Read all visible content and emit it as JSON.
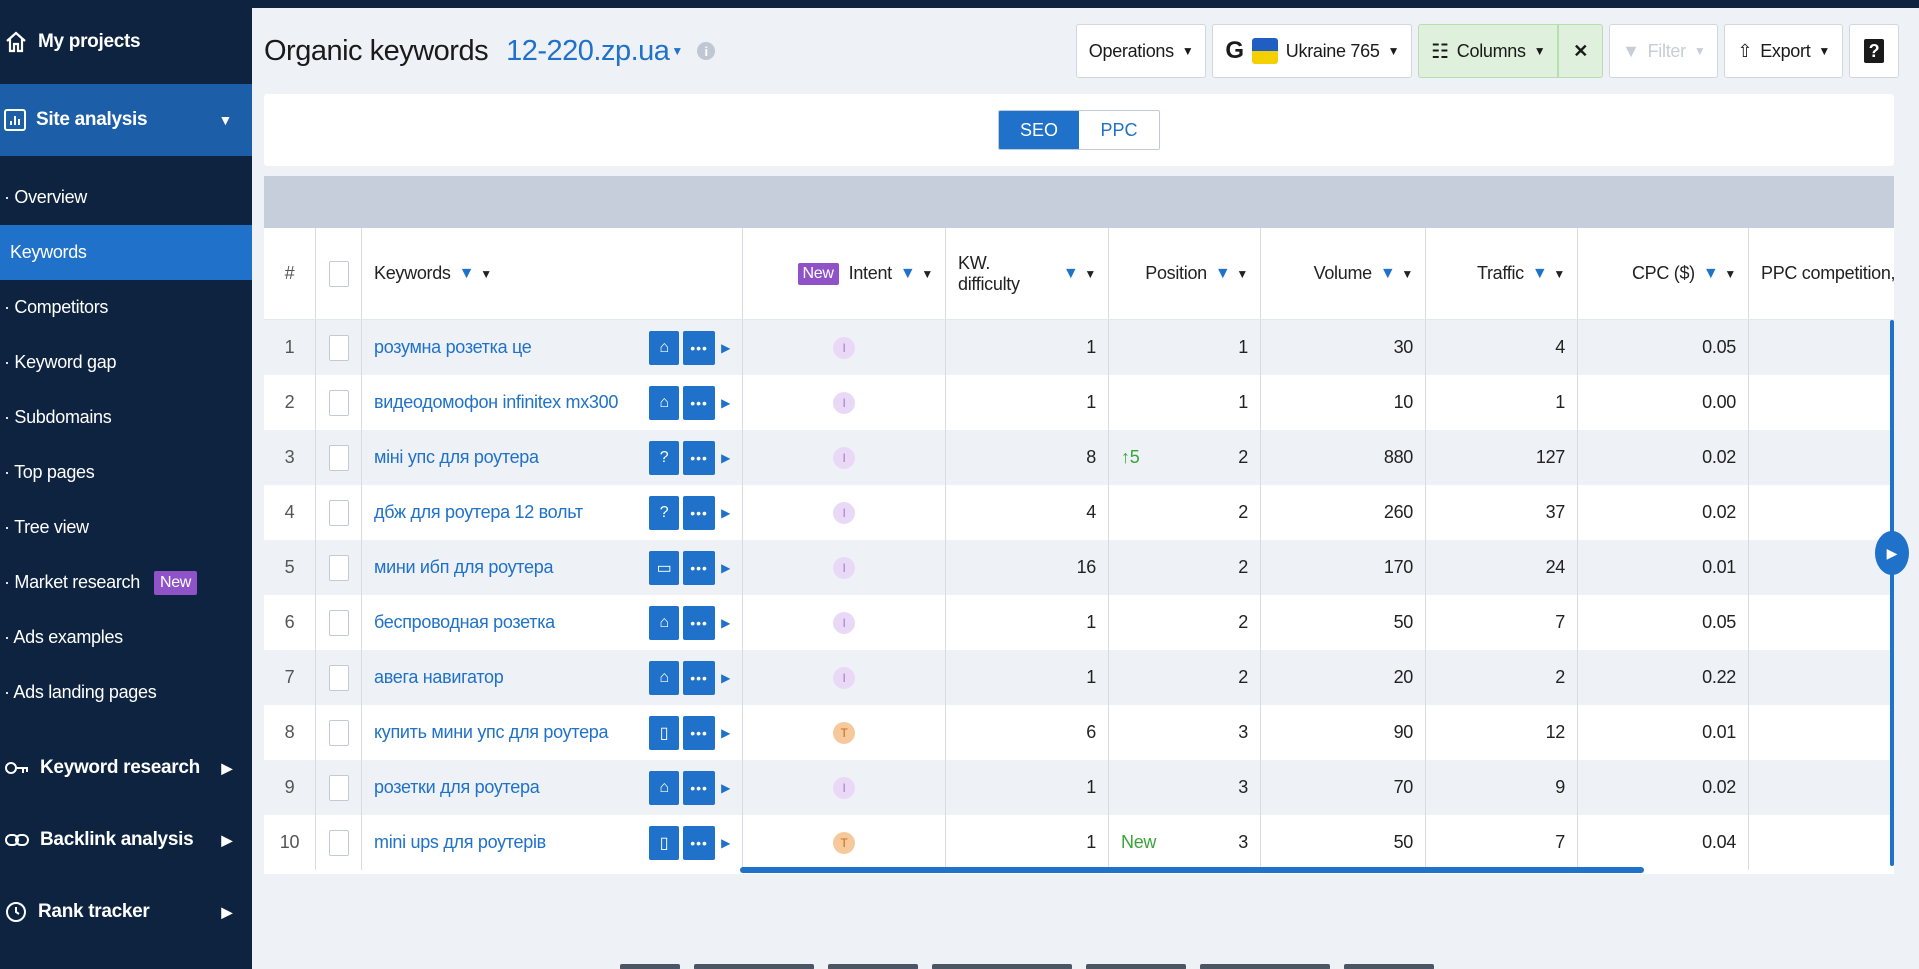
{
  "sidebar": {
    "home_label": "My projects",
    "site_analysis_label": "Site analysis",
    "sub_items": [
      {
        "label": "· Overview"
      },
      {
        "label": "Keywords"
      },
      {
        "label": "· Competitors"
      },
      {
        "label": "· Keyword gap"
      },
      {
        "label": "· Subdomains"
      },
      {
        "label": "· Top pages"
      },
      {
        "label": "· Tree view"
      },
      {
        "label": "· Market research",
        "badge": "New"
      },
      {
        "label": "· Ads examples"
      },
      {
        "label": "· Ads landing pages"
      }
    ],
    "sections": [
      {
        "label": "Keyword research"
      },
      {
        "label": "Backlink analysis"
      },
      {
        "label": "Rank tracker"
      }
    ]
  },
  "header": {
    "title": "Organic keywords",
    "domain": "12-220.zp.ua"
  },
  "toolbar": {
    "operations": "Operations",
    "country": "Ukraine 765",
    "columns": "Columns",
    "filter": "Filter",
    "export": "Export",
    "help": "?"
  },
  "toggle": {
    "seo": "SEO",
    "ppc": "PPC"
  },
  "table": {
    "headers": {
      "num": "#",
      "keywords": "Keywords",
      "new_tag": "New",
      "intent": "Intent",
      "kd": "KW. difficulty",
      "position": "Position",
      "volume": "Volume",
      "traffic": "Traffic",
      "cpc": "CPC ($)",
      "ppc": "PPC competition, %"
    },
    "rows": [
      {
        "num": "1",
        "keyword": "розумна розетка це",
        "icon": "⌂",
        "intent": "I",
        "kd": "1",
        "pos_change": "",
        "position": "1",
        "volume": "30",
        "traffic": "4",
        "cpc": "0.05"
      },
      {
        "num": "2",
        "keyword": "видеодомофон infinitex mx300",
        "icon": "⌂",
        "intent": "I",
        "kd": "1",
        "pos_change": "",
        "position": "1",
        "volume": "10",
        "traffic": "1",
        "cpc": "0.00"
      },
      {
        "num": "3",
        "keyword": "міні упс для роутера",
        "icon": "?",
        "intent": "I",
        "kd": "8",
        "pos_change": "↑5",
        "position": "2",
        "volume": "880",
        "traffic": "127",
        "cpc": "0.02"
      },
      {
        "num": "4",
        "keyword": "дбж для роутера 12 вольт",
        "icon": "?",
        "intent": "I",
        "kd": "4",
        "pos_change": "",
        "position": "2",
        "volume": "260",
        "traffic": "37",
        "cpc": "0.02"
      },
      {
        "num": "5",
        "keyword": "мини ибп для роутера",
        "icon": "▭",
        "intent": "I",
        "kd": "16",
        "pos_change": "",
        "position": "2",
        "volume": "170",
        "traffic": "24",
        "cpc": "0.01"
      },
      {
        "num": "6",
        "keyword": "беспроводная розетка",
        "icon": "⌂",
        "intent": "I",
        "kd": "1",
        "pos_change": "",
        "position": "2",
        "volume": "50",
        "traffic": "7",
        "cpc": "0.05"
      },
      {
        "num": "7",
        "keyword": "авега навигатор",
        "icon": "⌂",
        "intent": "I",
        "kd": "1",
        "pos_change": "",
        "position": "2",
        "volume": "20",
        "traffic": "2",
        "cpc": "0.22"
      },
      {
        "num": "8",
        "keyword": "купить мини упс для роутера",
        "icon": "▯",
        "intent": "T",
        "kd": "6",
        "pos_change": "",
        "position": "3",
        "volume": "90",
        "traffic": "12",
        "cpc": "0.01"
      },
      {
        "num": "9",
        "keyword": "розетки для роутера",
        "icon": "⌂",
        "intent": "I",
        "kd": "1",
        "pos_change": "",
        "position": "3",
        "volume": "70",
        "traffic": "9",
        "cpc": "0.02"
      },
      {
        "num": "10",
        "keyword": "mini ups для роутерів",
        "icon": "▯",
        "intent": "T",
        "kd": "1",
        "pos_change": "New",
        "position": "3",
        "volume": "50",
        "traffic": "7",
        "cpc": "0.04"
      }
    ]
  },
  "colors": {
    "sidebar_bg": "#0d2340",
    "accent": "#1f71c9",
    "new_badge": "#8f52c7"
  }
}
